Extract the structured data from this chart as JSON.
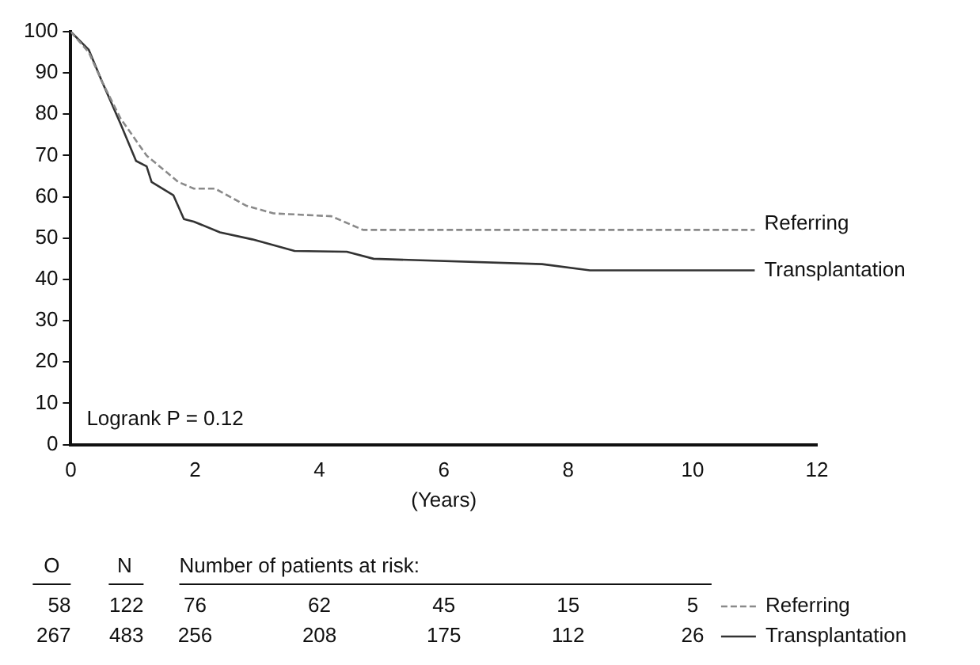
{
  "chart_data": {
    "type": "line",
    "xlabel": "(Years)",
    "xlim": [
      0,
      12
    ],
    "xticks": [
      0,
      2,
      4,
      6,
      8,
      10,
      12
    ],
    "ylim": [
      0,
      100
    ],
    "yticks": [
      0,
      10,
      20,
      30,
      40,
      50,
      60,
      70,
      80,
      90,
      100
    ],
    "grid": false,
    "legend": "bottom right",
    "marker": "none",
    "series": [
      {
        "name": "Referring",
        "color": "#8a8a8a",
        "line_style": "dashed",
        "x": [
          0,
          0.29,
          0.5,
          0.8,
          1.22,
          1.73,
          1.98,
          2.32,
          2.83,
          3.26,
          4.19,
          4.7,
          11
        ],
        "values": [
          100,
          95,
          88,
          79,
          70,
          63.6,
          62,
          62,
          57.8,
          56,
          55.3,
          52,
          52
        ]
      },
      {
        "name": "Transplantation",
        "color": "#333333",
        "line_style": "solid",
        "x": [
          0,
          0.29,
          0.5,
          0.8,
          1.05,
          1.22,
          1.3,
          1.65,
          1.82,
          1.98,
          2.4,
          2.92,
          3.6,
          4.44,
          4.87,
          7.58,
          8.35,
          11
        ],
        "values": [
          100,
          95.6,
          88,
          77.7,
          68.7,
          67.4,
          63.6,
          60.4,
          54.6,
          54,
          51.4,
          49.7,
          46.9,
          46.7,
          45,
          43.7,
          42.2,
          42.2
        ]
      }
    ],
    "annotations": [
      "Logrank P = 0.12",
      "O",
      "N",
      "Number of patients at risk:",
      "58",
      "122",
      "76",
      "62",
      "45",
      "15",
      "5",
      "267",
      "483",
      "256",
      "208",
      "175",
      "112",
      "26"
    ]
  }
}
